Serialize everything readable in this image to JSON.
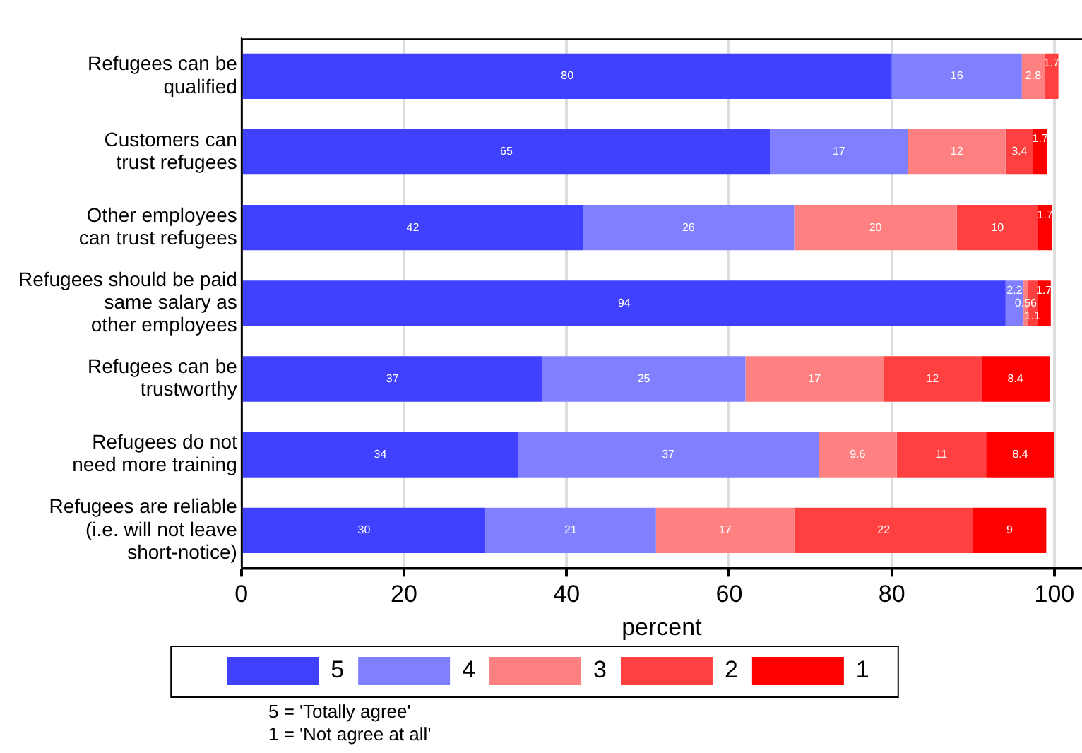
{
  "chart_data": {
    "type": "bar",
    "orientation": "horizontal",
    "stacked": true,
    "data_labels": true,
    "grid": "x",
    "legend": "bottom",
    "xlabel": "percent",
    "categories": [
      "Refugees can be\nqualified",
      "Customers can\ntrust refugees",
      "Other employees\ncan trust refugees",
      "Refugees should be paid\nsame salary as\nother employees",
      "Refugees can be\ntrustworthy",
      "Refugees do not\nneed more training",
      "Refugees are reliable\n(i.e. will not leave\nshort-notice)"
    ],
    "series": [
      {
        "name": "5",
        "color": "#4040ff",
        "values": [
          80,
          65,
          42,
          94,
          37,
          34,
          30
        ]
      },
      {
        "name": "4",
        "color": "#8080ff",
        "values": [
          16,
          17,
          26,
          2.2,
          25,
          37,
          21
        ]
      },
      {
        "name": "3",
        "color": "#ff8080",
        "values": [
          2.8,
          12,
          20,
          0.56,
          17,
          9.6,
          17
        ]
      },
      {
        "name": "2",
        "color": "#ff4040",
        "values": [
          1.7,
          3.4,
          10,
          1.1,
          12,
          11,
          22
        ]
      },
      {
        "name": "1",
        "color": "#ff0000",
        "values": [
          null,
          1.7,
          1.7,
          1.7,
          8.4,
          8.4,
          9
        ]
      }
    ],
    "xlim": [
      0,
      103.4
    ],
    "xticks": [
      0,
      20,
      40,
      60,
      80,
      100
    ],
    "annotations": [
      "5 = 'Totally agree'",
      "1 = 'Not agree at all'"
    ]
  }
}
